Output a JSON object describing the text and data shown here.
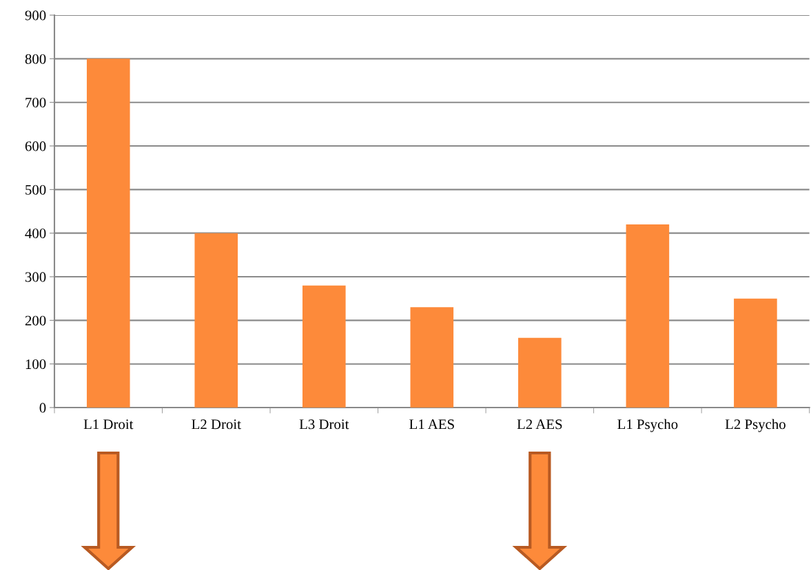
{
  "chart_data": {
    "type": "bar",
    "categories": [
      "L1 Droit",
      "L2 Droit",
      "L3 Droit",
      "L1 AES",
      "L2 AES",
      "L1 Psycho",
      "L2 Psycho"
    ],
    "values": [
      800,
      400,
      280,
      230,
      160,
      420,
      250
    ],
    "color": "#fd8a3a",
    "ylim": [
      0,
      900
    ],
    "yticks": [
      0,
      100,
      200,
      300,
      400,
      500,
      600,
      700,
      800,
      900
    ],
    "grid": "y",
    "legend": false
  }
}
